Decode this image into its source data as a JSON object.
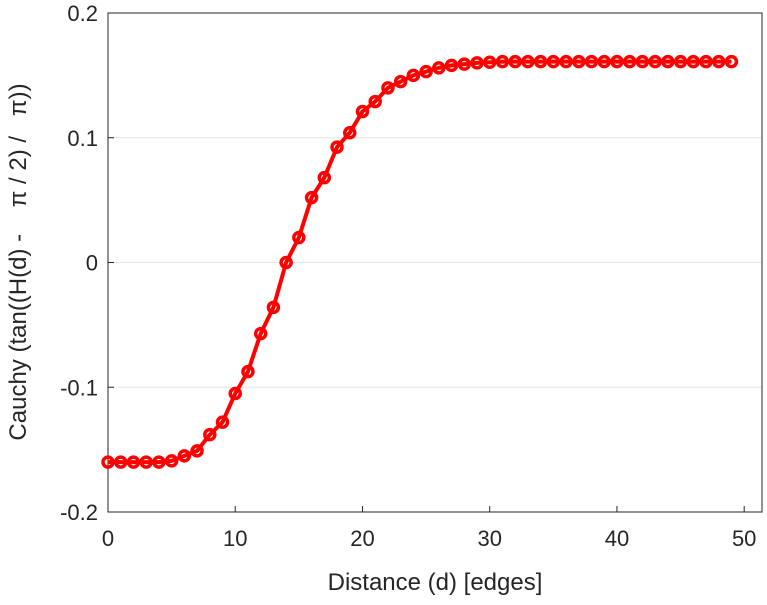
{
  "chart_data": {
    "type": "line",
    "title": "",
    "xlabel": "Distance (d) [edges]",
    "ylabel": "Cauchy (tan((H(d) -    π / 2) /   π))",
    "xlim": [
      0,
      51.4
    ],
    "ylim": [
      -0.2,
      0.2
    ],
    "xticks": [
      0,
      10,
      20,
      30,
      40,
      50
    ],
    "xtick_labels": [
      "0",
      "10",
      "20",
      "30",
      "40",
      "50"
    ],
    "yticks": [
      -0.2,
      -0.1,
      0,
      0.1,
      0.2
    ],
    "ytick_labels": [
      "-0.2",
      "-0.1",
      "0",
      "0.1",
      "0.2"
    ],
    "grid": "horizontal",
    "series": [
      {
        "name": "Cauchy",
        "color": "#ff0000",
        "marker": "circle",
        "x": [
          0,
          1,
          2,
          3,
          4,
          5,
          6,
          7,
          8,
          9,
          10,
          11,
          12,
          13,
          14,
          15,
          16,
          17,
          18,
          19,
          20,
          21,
          22,
          23,
          24,
          25,
          26,
          27,
          28,
          29,
          30,
          31,
          32,
          33,
          34,
          35,
          36,
          37,
          38,
          39,
          40,
          41,
          42,
          43,
          44,
          45,
          46,
          47,
          48,
          49
        ],
        "values": [
          -0.16,
          -0.16,
          -0.16,
          -0.16,
          -0.16,
          -0.159,
          -0.155,
          -0.151,
          -0.138,
          -0.128,
          -0.105,
          -0.0875,
          -0.057,
          -0.036,
          0.0,
          0.02,
          0.052,
          0.068,
          0.0925,
          0.104,
          0.121,
          0.129,
          0.14,
          0.145,
          0.15,
          0.153,
          0.156,
          0.158,
          0.159,
          0.16,
          0.1605,
          0.161,
          0.161,
          0.161,
          0.161,
          0.161,
          0.161,
          0.161,
          0.161,
          0.161,
          0.161,
          0.161,
          0.161,
          0.161,
          0.161,
          0.161,
          0.161,
          0.161,
          0.161,
          0.161
        ]
      }
    ]
  }
}
